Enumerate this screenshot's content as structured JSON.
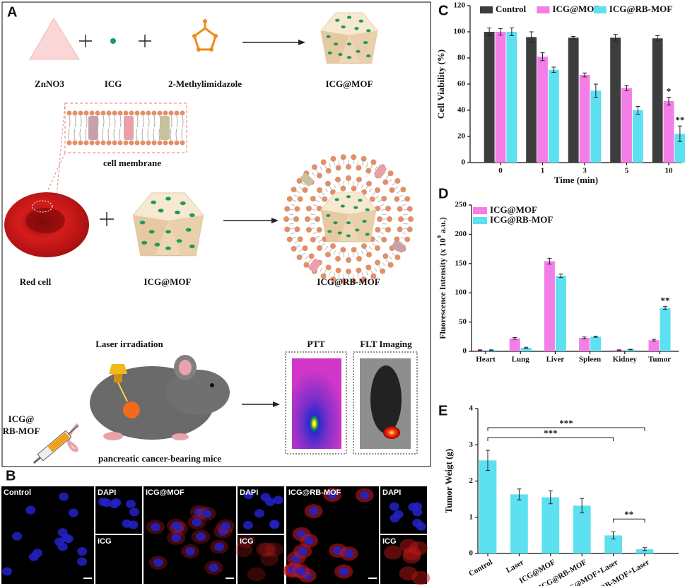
{
  "panels": [
    "A",
    "B",
    "C",
    "D",
    "E"
  ],
  "scheme": {
    "reagents": [
      "ZnNO3",
      "ICG",
      "2-Methylimidazole"
    ],
    "product": "ICG@MOF",
    "membrane": "cell membrane",
    "red_cell": "Red cell",
    "core": "ICG@MOF",
    "coated": "ICG@RB-MOF",
    "laser": "Laser irradiation",
    "injection": [
      "ICG@",
      "RB-MOF"
    ],
    "mice": "pancreatic cancer-bearing mice",
    "ptt": "PTT",
    "imaging": "FLT Imaging"
  },
  "microscopy": {
    "groups": [
      {
        "title": "Control",
        "channels": [
          "DAPI",
          "ICG"
        ]
      },
      {
        "title": "ICG@MOF",
        "channels": [
          "DAPI",
          "ICG"
        ]
      },
      {
        "title": "ICG@RB-MOF",
        "channels": [
          "DAPI",
          "ICG"
        ]
      }
    ]
  },
  "chart_data": [
    {
      "type": "bar",
      "xlabel": "Time (min)",
      "ylabel": "Cell Viability (%)",
      "categories": [
        "0",
        "1",
        "3",
        "5",
        "10"
      ],
      "series": [
        {
          "name": "Control",
          "color": "#3d3d3d",
          "values": [
            100,
            96,
            95.5,
            95.5,
            95
          ],
          "errors": [
            3,
            4,
            1,
            2.5,
            2
          ]
        },
        {
          "name": "ICG@MOF",
          "color": "#f47ee8",
          "values": [
            100,
            81,
            67,
            57,
            47
          ],
          "errors": [
            2.5,
            3,
            1.5,
            2,
            3
          ]
        },
        {
          "name": "ICG@RB-MOF",
          "color": "#5de0f0",
          "values": [
            100,
            71,
            55,
            40,
            22
          ],
          "errors": [
            3,
            2,
            5,
            3,
            6
          ]
        }
      ],
      "ylim": [
        0,
        120
      ],
      "yticks": [
        0,
        20,
        40,
        60,
        80,
        100,
        120
      ],
      "legend": "top",
      "annotations": [
        {
          "label": "*",
          "series": "ICG@MOF",
          "category": "10"
        },
        {
          "label": "**",
          "series": "ICG@RB-MOF",
          "category": "10"
        }
      ]
    },
    {
      "type": "bar",
      "ylabel": [
        "Fluorescence Intensity (x 10",
        "9",
        " a.u.)"
      ],
      "categories": [
        "Heart",
        "Lung",
        "Liver",
        "Spleen",
        "Kidney",
        "Tumor"
      ],
      "series": [
        {
          "name": "ICG@MOF",
          "color": "#f47ee8",
          "values": [
            2,
            22,
            154,
            23,
            2,
            19
          ],
          "errors": [
            0.5,
            1.5,
            5,
            1.5,
            0.5,
            1.5
          ]
        },
        {
          "name": "ICG@RB-MOF",
          "color": "#5de0f0",
          "values": [
            2,
            6,
            129,
            25,
            3,
            74
          ],
          "errors": [
            0.5,
            1,
            3,
            1,
            0.5,
            2.5
          ]
        }
      ],
      "ylim": [
        0,
        250
      ],
      "yticks": [
        0,
        50,
        100,
        150,
        200,
        250
      ],
      "legend": "upper left",
      "annotations": [
        {
          "label": "**",
          "series": "ICG@RB-MOF",
          "category": "Tumor"
        }
      ]
    },
    {
      "type": "bar",
      "ylabel": "Tumor Weigt (g)",
      "categories": [
        "Control",
        "Laser",
        "ICG@MOF",
        "ICG@RB-MOF",
        "ICG@MOF+Laser",
        "ICG@RB-MOF+Laser"
      ],
      "values": [
        2.57,
        1.63,
        1.55,
        1.32,
        0.5,
        0.12
      ],
      "errors": [
        0.28,
        0.15,
        0.18,
        0.2,
        0.1,
        0.04
      ],
      "color": "#5de0f0",
      "ylim": [
        0,
        4
      ],
      "yticks": [
        0,
        1,
        2,
        3,
        4
      ],
      "brackets": [
        {
          "label": "***",
          "from": "Control",
          "to": "ICG@RB-MOF+Laser"
        },
        {
          "label": "***",
          "from": "Control",
          "to": "ICG@MOF+Laser"
        },
        {
          "label": "**",
          "from": "ICG@MOF+Laser",
          "to": "ICG@RB-MOF+Laser"
        }
      ]
    }
  ]
}
